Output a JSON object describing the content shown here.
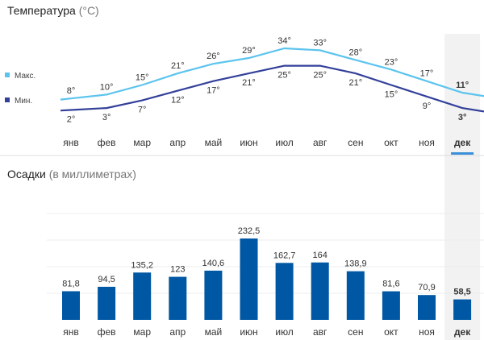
{
  "temperature": {
    "title": "Температура",
    "unit": "(°C)",
    "legend": {
      "max": "Макс.",
      "min": "Мин."
    },
    "colors": {
      "max": "#5bc4ee",
      "min": "#33409a"
    }
  },
  "precipitation": {
    "title": "Осадки",
    "unit": "(в миллиметрах)",
    "color": "#0057a3"
  },
  "months": [
    "янв",
    "фев",
    "мар",
    "апр",
    "май",
    "июн",
    "июл",
    "авг",
    "сен",
    "окт",
    "ноя",
    "дек"
  ],
  "selected_month_index": 11,
  "chart_data": [
    {
      "type": "line",
      "title": "Температура (°C)",
      "categories": [
        "янв",
        "фев",
        "мар",
        "апр",
        "май",
        "июн",
        "июл",
        "авг",
        "сен",
        "окт",
        "ноя",
        "дек"
      ],
      "series": [
        {
          "name": "Макс.",
          "values": [
            8,
            10,
            15,
            21,
            26,
            29,
            34,
            33,
            28,
            23,
            17,
            11
          ],
          "labels": [
            "8°",
            "10°",
            "15°",
            "21°",
            "26°",
            "29°",
            "34°",
            "33°",
            "28°",
            "23°",
            "17°",
            "11°"
          ]
        },
        {
          "name": "Мин.",
          "values": [
            2,
            3,
            7,
            12,
            17,
            21,
            25,
            25,
            21,
            15,
            9,
            3
          ],
          "labels": [
            "2°",
            "3°",
            "7°",
            "12°",
            "17°",
            "21°",
            "25°",
            "25°",
            "21°",
            "15°",
            "9°",
            "3°"
          ]
        }
      ],
      "legend": "left"
    },
    {
      "type": "bar",
      "title": "Осадки (в миллиметрах)",
      "categories": [
        "янв",
        "фев",
        "мар",
        "апр",
        "май",
        "июн",
        "июл",
        "авг",
        "сен",
        "окт",
        "ноя",
        "дек"
      ],
      "values": [
        81.8,
        94.5,
        135.2,
        123,
        140.6,
        232.5,
        162.7,
        164,
        138.9,
        81.6,
        70.9,
        58.5
      ],
      "labels": [
        "81,8",
        "94,5",
        "135,2",
        "123",
        "140,6",
        "232,5",
        "162,7",
        "164",
        "138,9",
        "81,6",
        "70,9",
        "58,5"
      ],
      "ylim": [
        0,
        280
      ],
      "grid": true
    }
  ]
}
